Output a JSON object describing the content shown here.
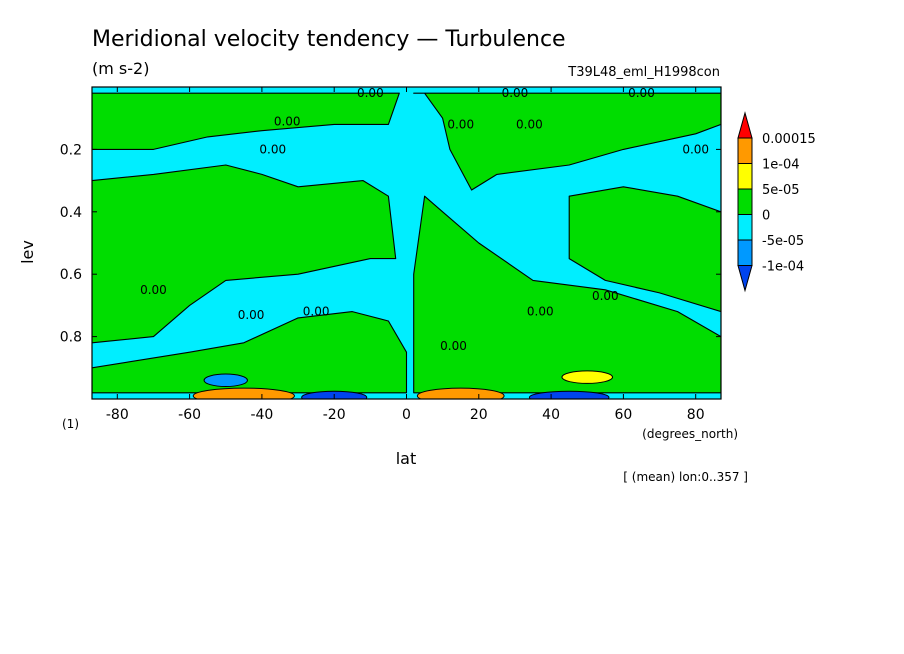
{
  "chart_data": {
    "type": "heatmap",
    "title": "Meridional velocity tendency — Turbulence",
    "units": "(m s-2)",
    "experiment": "T39L48_eml_H1998con",
    "xlabel": "lat",
    "ylabel": "lev",
    "x_units": "(degrees_north)",
    "y_units": "(1)",
    "xlim": [
      -87,
      87
    ],
    "ylim": [
      1.0,
      0.0
    ],
    "x_ticks": [
      -80,
      -60,
      -40,
      -20,
      0,
      20,
      40,
      60,
      80
    ],
    "x_tick_labels": [
      "-80",
      "-60",
      "-40",
      "-20",
      "0",
      "20",
      "40",
      "60",
      "80"
    ],
    "y_ticks": [
      0.2,
      0.4,
      0.6,
      0.8
    ],
    "y_tick_labels": [
      "0.2",
      "0.4",
      "0.6",
      "0.8"
    ],
    "contour_label": "0.00",
    "footnote": "[ (mean) lon:0..357 ]",
    "legend": {
      "labels": [
        "0.00015",
        "1e-04",
        "5e-05",
        "0",
        "-5e-05",
        "-1e-04"
      ],
      "colors": [
        "#ff0000",
        "#ff9900",
        "#ffff00",
        "#00dd00",
        "#00eeff",
        "#0099ff",
        "#0044ee"
      ]
    },
    "levels": [
      -0.0001,
      -5e-05,
      0,
      5e-05,
      0.0001,
      0.00015
    ],
    "fill_colors": {
      "neg_strong": "#0044ee",
      "neg_mid": "#0099ff",
      "neg": "#00eeff",
      "pos": "#00dd00",
      "pos_mid": "#ffff00",
      "pos_strong": "#ff9900",
      "pos_max": "#ff0000"
    },
    "positive_regions": [
      {
        "name": "nh-upper-band",
        "points": [
          [
            -87,
            0.2
          ],
          [
            -70,
            0.2
          ],
          [
            -55,
            0.16
          ],
          [
            -40,
            0.14
          ],
          [
            -20,
            0.12
          ],
          [
            -5,
            0.12
          ],
          [
            -2,
            0.02
          ],
          [
            -87,
            0.02
          ]
        ]
      },
      {
        "name": "sh-wide-band",
        "points": [
          [
            -87,
            0.3
          ],
          [
            -70,
            0.28
          ],
          [
            -50,
            0.25
          ],
          [
            -40,
            0.28
          ],
          [
            -30,
            0.32
          ],
          [
            -12,
            0.3
          ],
          [
            -5,
            0.35
          ],
          [
            -3,
            0.55
          ],
          [
            -10,
            0.55
          ],
          [
            -30,
            0.6
          ],
          [
            -50,
            0.62
          ],
          [
            -60,
            0.7
          ],
          [
            -70,
            0.8
          ],
          [
            -87,
            0.82
          ]
        ]
      },
      {
        "name": "tropical-wedge",
        "points": [
          [
            2,
            0.02
          ],
          [
            5,
            0.02
          ],
          [
            10,
            0.1
          ],
          [
            12,
            0.2
          ],
          [
            18,
            0.33
          ],
          [
            25,
            0.28
          ],
          [
            45,
            0.25
          ],
          [
            60,
            0.2
          ],
          [
            80,
            0.15
          ],
          [
            87,
            0.12
          ],
          [
            87,
            0.02
          ]
        ]
      },
      {
        "name": "central-column",
        "points": [
          [
            2,
            0.6
          ],
          [
            5,
            0.35
          ],
          [
            10,
            0.4
          ],
          [
            20,
            0.5
          ],
          [
            35,
            0.62
          ],
          [
            55,
            0.65
          ],
          [
            75,
            0.72
          ],
          [
            87,
            0.8
          ],
          [
            87,
            0.98
          ],
          [
            2,
            0.98
          ]
        ]
      },
      {
        "name": "east-patch",
        "points": [
          [
            45,
            0.35
          ],
          [
            60,
            0.32
          ],
          [
            75,
            0.35
          ],
          [
            87,
            0.4
          ],
          [
            87,
            0.72
          ],
          [
            70,
            0.66
          ],
          [
            55,
            0.62
          ],
          [
            45,
            0.55
          ]
        ]
      },
      {
        "name": "lower-belt",
        "points": [
          [
            -87,
            0.9
          ],
          [
            -60,
            0.85
          ],
          [
            -45,
            0.82
          ],
          [
            -30,
            0.74
          ],
          [
            -15,
            0.72
          ],
          [
            -5,
            0.75
          ],
          [
            0,
            0.85
          ],
          [
            0,
            0.98
          ],
          [
            -87,
            0.98
          ]
        ]
      }
    ],
    "extreme_regions": [
      {
        "name": "south-red-core",
        "center": [
          -45,
          0.995
        ],
        "rx": 9,
        "ry": 0.015,
        "level": "pos_max"
      },
      {
        "name": "south-orange",
        "center": [
          -45,
          0.99
        ],
        "rx": 14,
        "ry": 0.025,
        "level": "pos_strong"
      },
      {
        "name": "south-blue-core",
        "center": [
          -20,
          0.995
        ],
        "rx": 9,
        "ry": 0.02,
        "level": "neg_strong"
      },
      {
        "name": "south-blue-mid",
        "center": [
          -50,
          0.94
        ],
        "rx": 6,
        "ry": 0.02,
        "level": "neg_mid"
      },
      {
        "name": "north-orange",
        "center": [
          15,
          0.99
        ],
        "rx": 12,
        "ry": 0.025,
        "level": "pos_strong"
      },
      {
        "name": "north-blue-core",
        "center": [
          45,
          0.995
        ],
        "rx": 11,
        "ry": 0.02,
        "level": "neg_strong"
      },
      {
        "name": "north-yellow",
        "center": [
          50,
          0.93
        ],
        "rx": 7,
        "ry": 0.02,
        "level": "pos_mid"
      }
    ]
  }
}
